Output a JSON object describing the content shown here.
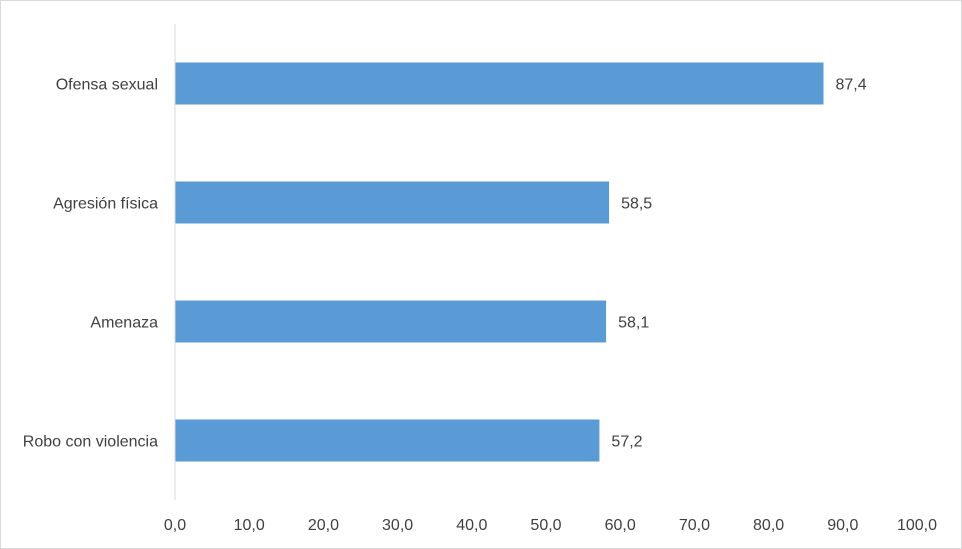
{
  "chart_data": {
    "type": "bar",
    "orientation": "horizontal",
    "categories": [
      "Ofensa sexual",
      "Agresión física",
      "Amenaza",
      "Robo con violencia"
    ],
    "values": [
      87.4,
      58.5,
      58.1,
      57.2
    ],
    "data_labels": [
      "87,4",
      "58,5",
      "58,1",
      "57,2"
    ],
    "xlim": [
      0,
      100
    ],
    "x_ticks": [
      "0,0",
      "10,0",
      "20,0",
      "30,0",
      "40,0",
      "50,0",
      "60,0",
      "70,0",
      "80,0",
      "90,0",
      "100,0"
    ],
    "grid": false,
    "legend": "none",
    "title": "",
    "xlabel": "",
    "ylabel": "",
    "colors": {
      "bar": "#5b9bd5",
      "axis": "#d9d9d9",
      "text": "#404040"
    }
  }
}
